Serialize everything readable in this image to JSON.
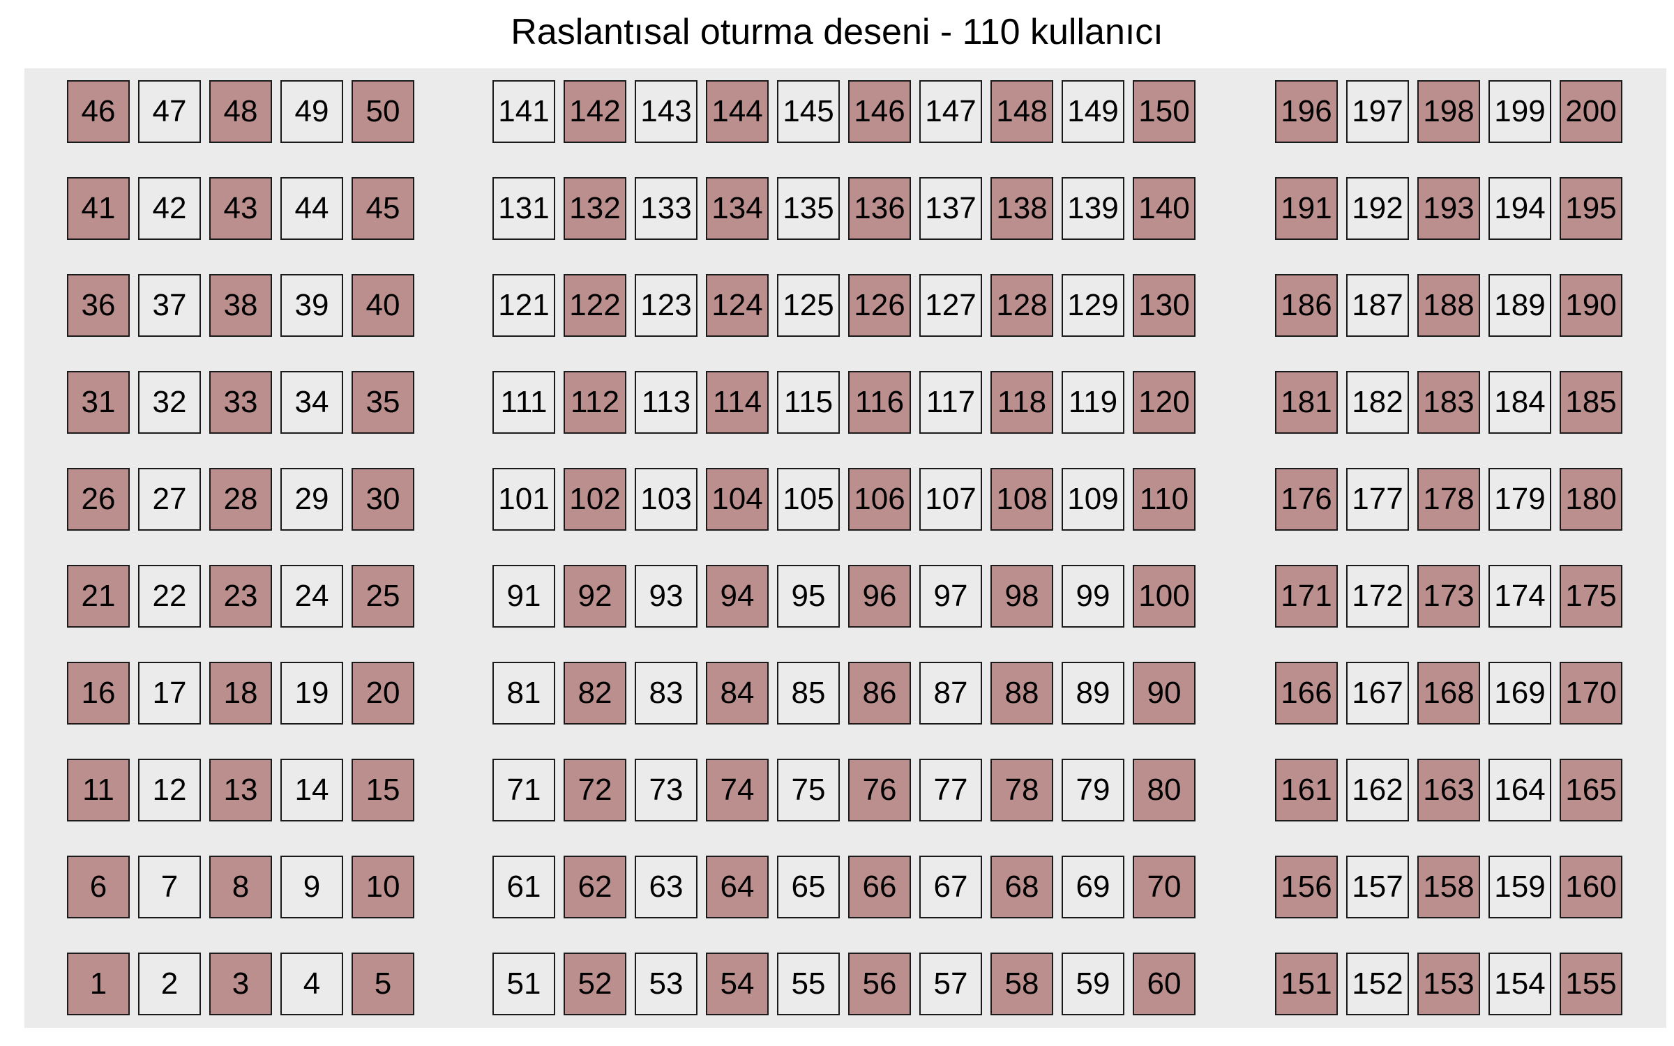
{
  "chart_data": {
    "type": "heatmap",
    "title": "Raslantısal oturma deseni - 110 kullanıcı",
    "xlabel": "",
    "ylabel": "",
    "grid": false,
    "legend": "none",
    "colors": {
      "occupied": "#bc8f8f",
      "empty": "#ebebeb",
      "panel_background": "#ebebeb",
      "border": "#1a1a1a"
    },
    "blocks": [
      {
        "name": "left",
        "columns": 5,
        "rows": 10,
        "start": 1,
        "end": 50
      },
      {
        "name": "middle",
        "columns": 10,
        "rows": 10,
        "start": 51,
        "end": 150
      },
      {
        "name": "right",
        "columns": 5,
        "rows": 10,
        "start": 151,
        "end": 200
      }
    ],
    "seat_numbering": "row by row from bottom-left of each block, increasing left to right",
    "occupied_seats": [
      1,
      3,
      5,
      6,
      8,
      10,
      11,
      13,
      15,
      16,
      18,
      20,
      21,
      23,
      25,
      26,
      28,
      30,
      31,
      33,
      35,
      36,
      38,
      40,
      41,
      43,
      45,
      46,
      48,
      50,
      52,
      54,
      56,
      58,
      60,
      62,
      64,
      66,
      68,
      70,
      72,
      74,
      76,
      78,
      80,
      82,
      84,
      86,
      88,
      90,
      92,
      94,
      96,
      98,
      100,
      102,
      104,
      106,
      108,
      110,
      112,
      114,
      116,
      118,
      120,
      122,
      124,
      126,
      128,
      130,
      132,
      134,
      136,
      138,
      140,
      142,
      144,
      146,
      148,
      150,
      151,
      153,
      155,
      156,
      158,
      160,
      161,
      163,
      165,
      166,
      168,
      170,
      171,
      173,
      175,
      176,
      178,
      180,
      181,
      183,
      185,
      186,
      188,
      190,
      191,
      193,
      195,
      196,
      198,
      200
    ],
    "occupied_count": 110,
    "total_seats": 200
  }
}
